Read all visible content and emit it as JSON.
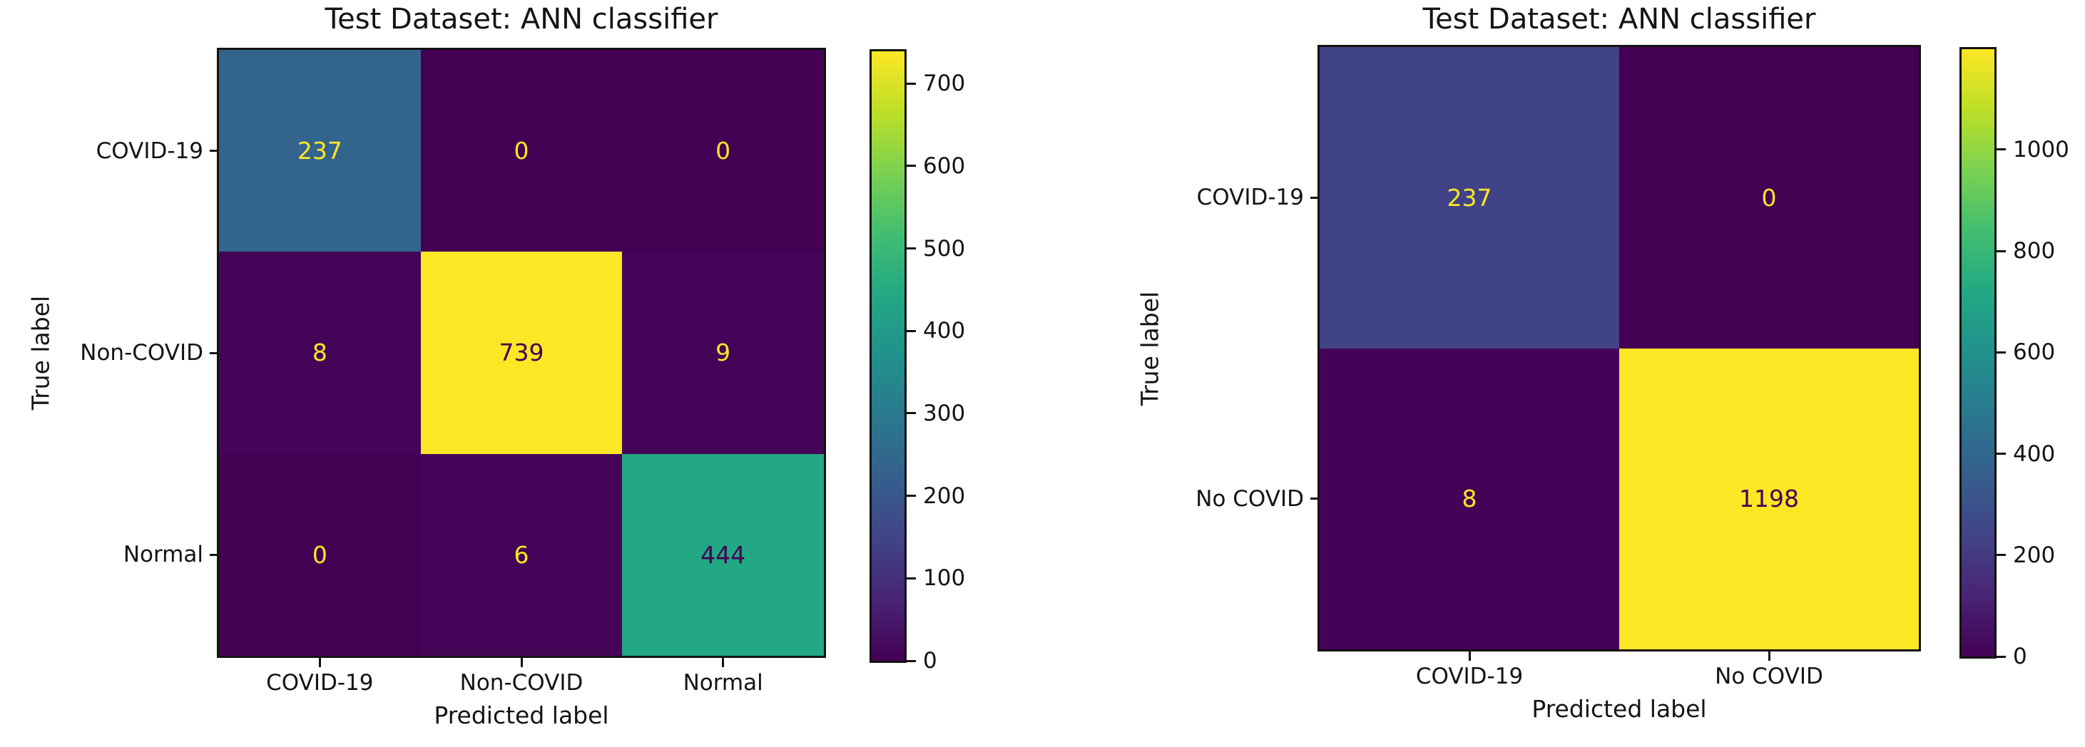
{
  "page": {
    "background": "#ffffff"
  },
  "palette": {
    "viridis_low": "#440154",
    "viridis_high": "#fde725",
    "cell_237_left": "#33658d",
    "cell_444": "#22a884",
    "cell_max_yellow": "#fce325",
    "cell_237_right": "#414589",
    "axis_color": "#121212"
  },
  "chart_data": [
    {
      "type": "heatmap",
      "title": "Test Dataset: ANN classifier",
      "xlabel": "Predicted label",
      "ylabel": "True label",
      "colormap": "viridis",
      "x_categories": [
        "COVID-19",
        "Non-COVID",
        "Normal"
      ],
      "y_categories": [
        "COVID-19",
        "Non-COVID",
        "Normal"
      ],
      "matrix": [
        [
          237,
          0,
          0
        ],
        [
          8,
          739,
          9
        ],
        [
          0,
          6,
          444
        ]
      ],
      "vmin": 0,
      "vmax": 739,
      "colorbar_ticks": [
        0,
        100,
        200,
        300,
        400,
        500,
        600,
        700
      ],
      "annotation_color_low_values": "#fde725",
      "annotation_color_high_values": "#440154",
      "legend_position": "right-colorbar",
      "grid": false
    },
    {
      "type": "heatmap",
      "title": "Test Dataset: ANN classifier",
      "xlabel": "Predicted label",
      "ylabel": "True label",
      "colormap": "viridis",
      "x_categories": [
        "COVID-19",
        "No COVID"
      ],
      "y_categories": [
        "COVID-19",
        "No COVID"
      ],
      "matrix": [
        [
          237,
          0
        ],
        [
          8,
          1198
        ]
      ],
      "vmin": 0,
      "vmax": 1198,
      "colorbar_ticks": [
        0,
        200,
        400,
        600,
        800,
        1000
      ],
      "annotation_color_low_values": "#fde725",
      "annotation_color_high_values": "#440154",
      "legend_position": "right-colorbar",
      "grid": false
    }
  ]
}
